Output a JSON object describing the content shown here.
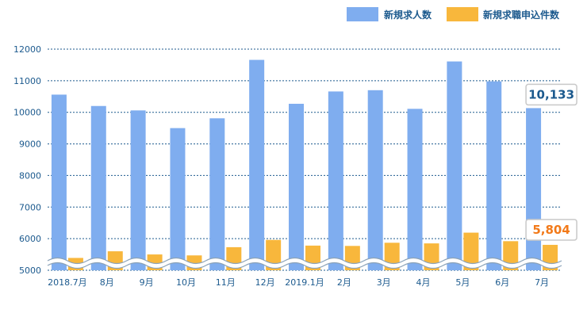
{
  "chart_data": {
    "type": "bar",
    "categories": [
      "2018.7月",
      "8月",
      "9月",
      "10月",
      "11月",
      "12月",
      "2019.1月",
      "2月",
      "3月",
      "4月",
      "5月",
      "6月",
      "7月"
    ],
    "series": [
      {
        "name": "新規求人数",
        "color": "#7fadef",
        "values": [
          10560,
          10200,
          10060,
          9500,
          9810,
          11660,
          10270,
          10660,
          10700,
          10110,
          11610,
          10980,
          10133
        ]
      },
      {
        "name": "新規求職申込件数",
        "color": "#f8b73c",
        "values": [
          5390,
          5600,
          5500,
          5470,
          5730,
          5960,
          5780,
          5770,
          5870,
          5850,
          6190,
          5920,
          5804
        ]
      }
    ],
    "ylim": [
      5000,
      12000
    ],
    "yticks": [
      5000,
      6000,
      7000,
      8000,
      9000,
      10000,
      11000,
      12000
    ],
    "grid": true,
    "axis_break": true,
    "legend_position": "top-right",
    "annotations": [
      {
        "series": 0,
        "category_index": 12,
        "text": "10,133",
        "color": "#1c5a8e"
      },
      {
        "series": 1,
        "category_index": 12,
        "text": "5,804",
        "color": "#f27a1a"
      }
    ]
  }
}
